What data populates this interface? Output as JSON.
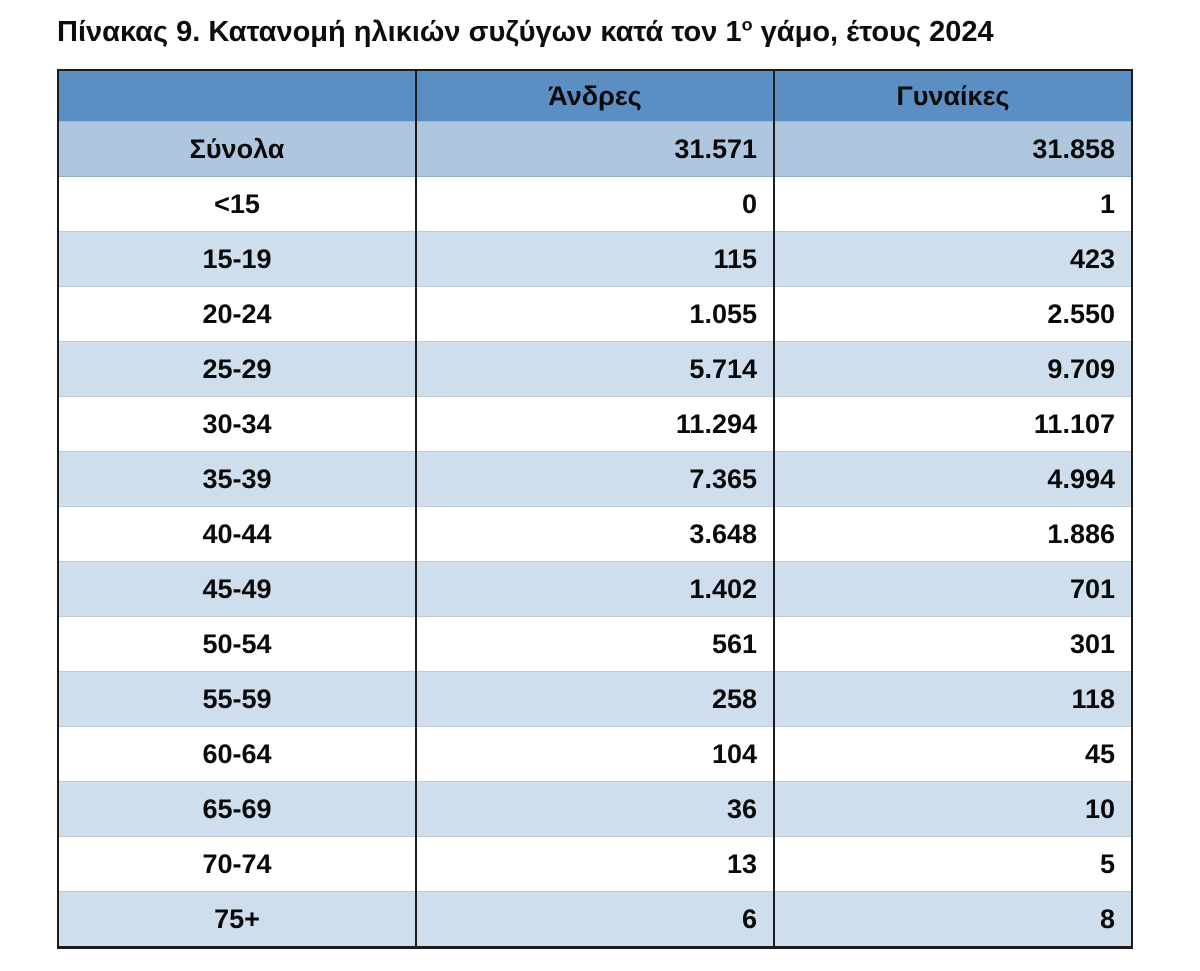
{
  "title": {
    "prefix": "Πίνακας 9. Κατανομή ηλικιών συζύγων κατά τον 1",
    "superscript": "ο",
    "suffix": " γάμο, έτους 2024"
  },
  "table": {
    "columns": {
      "label": "",
      "men": "Άνδρες",
      "women": "Γυναίκες"
    },
    "total_row": {
      "label": "Σύνολα",
      "men": "31.571",
      "women": "31.858"
    },
    "rows": [
      {
        "label": "<15",
        "men": "0",
        "women": "1"
      },
      {
        "label": "15-19",
        "men": "115",
        "women": "423"
      },
      {
        "label": "20-24",
        "men": "1.055",
        "women": "2.550"
      },
      {
        "label": "25-29",
        "men": "5.714",
        "women": "9.709"
      },
      {
        "label": "30-34",
        "men": "11.294",
        "women": "11.107"
      },
      {
        "label": "35-39",
        "men": "7.365",
        "women": "4.994"
      },
      {
        "label": "40-44",
        "men": "3.648",
        "women": "1.886"
      },
      {
        "label": "45-49",
        "men": "1.402",
        "women": "701"
      },
      {
        "label": "50-54",
        "men": "561",
        "women": "301"
      },
      {
        "label": "55-59",
        "men": "258",
        "women": "118"
      },
      {
        "label": "60-64",
        "men": "104",
        "women": "45"
      },
      {
        "label": "65-69",
        "men": "36",
        "women": "10"
      },
      {
        "label": "70-74",
        "men": "13",
        "women": "5"
      },
      {
        "label": "75+",
        "men": "6",
        "women": "8"
      }
    ]
  },
  "colors": {
    "header_bg": "#5b8fc4",
    "total_row_bg": "#aec6de",
    "stripe_row_bg": "#cfdeed",
    "white_row_bg": "#ffffff",
    "border": "#1c1c1c",
    "text": "#0a0a0a"
  },
  "chart_data": {
    "type": "table",
    "title": "Πίνακας 9. Κατανομή ηλικιών συζύγων κατά τον 1ο γάμο, έτους 2024",
    "categories": [
      "Σύνολα",
      "<15",
      "15-19",
      "20-24",
      "25-29",
      "30-34",
      "35-39",
      "40-44",
      "45-49",
      "50-54",
      "55-59",
      "60-64",
      "65-69",
      "70-74",
      "75+"
    ],
    "series": [
      {
        "name": "Άνδρες",
        "values": [
          31571,
          0,
          115,
          1055,
          5714,
          11294,
          7365,
          3648,
          1402,
          561,
          258,
          104,
          36,
          13,
          6
        ]
      },
      {
        "name": "Γυναίκες",
        "values": [
          31858,
          1,
          423,
          2550,
          9709,
          11107,
          4994,
          1886,
          701,
          301,
          118,
          45,
          10,
          5,
          8
        ]
      }
    ]
  }
}
